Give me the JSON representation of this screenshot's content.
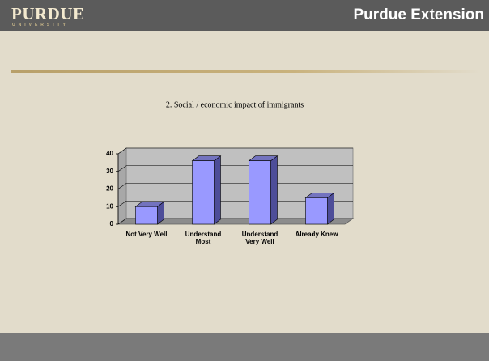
{
  "header": {
    "logo": "PURDUE",
    "logo_sub": "UNIVERSITY",
    "title": "Purdue Extension"
  },
  "chart_data": {
    "type": "bar",
    "title": "2. Social / economic impact of immigrants",
    "categories": [
      "Not Very Well",
      "Understand Most",
      "Understand Very Well",
      "Already Knew"
    ],
    "values": [
      10,
      36,
      36,
      15
    ],
    "color": "#9999ff",
    "ylim": [
      0,
      40
    ],
    "yticks": [
      0,
      10,
      20,
      30,
      40
    ],
    "grid": true
  }
}
